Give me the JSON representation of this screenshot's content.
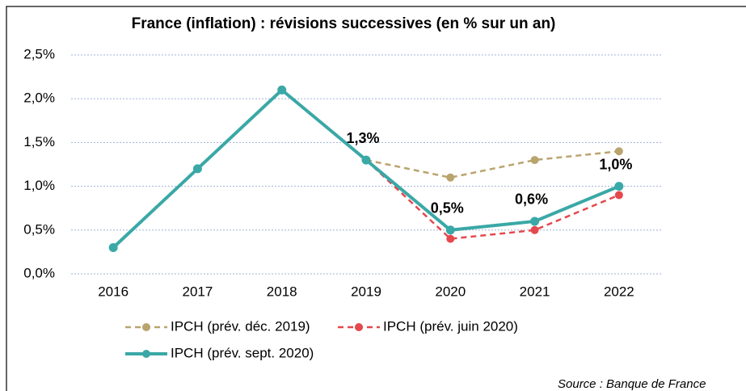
{
  "chart_data": {
    "type": "line",
    "title": "France (inflation) : révisions successives (en % sur un an)",
    "source": "Source : Banque de France",
    "categories": [
      "2016",
      "2017",
      "2018",
      "2019",
      "2020",
      "2021",
      "2022"
    ],
    "series": [
      {
        "name": "IPCH (prév. déc. 2019)",
        "color": "#b9a46e",
        "dashed": true,
        "values": [
          null,
          null,
          null,
          1.3,
          1.1,
          1.3,
          1.4
        ]
      },
      {
        "name": "IPCH (prév. juin 2020)",
        "color": "#e5484d",
        "dashed": true,
        "values": [
          null,
          null,
          null,
          1.3,
          0.4,
          0.5,
          0.9
        ]
      },
      {
        "name": "IPCH (prév. sept. 2020)",
        "color": "#3aa8a6",
        "dashed": false,
        "values": [
          0.3,
          1.2,
          2.1,
          1.3,
          0.5,
          0.6,
          1.0
        ],
        "value_labels": [
          null,
          null,
          null,
          "1,3%",
          "0,5%",
          "0,6%",
          "1,0%"
        ],
        "value_label_color": "#3aa3b2"
      }
    ],
    "ylim": [
      0,
      2.5
    ],
    "yticks": [
      {
        "value": 0,
        "label": "0,0%"
      },
      {
        "value": 0.5,
        "label": "0,5%"
      },
      {
        "value": 1,
        "label": "1,0%"
      },
      {
        "value": 1.5,
        "label": "1,5%"
      },
      {
        "value": 2,
        "label": "2,0%"
      },
      {
        "value": 2.5,
        "label": "2,5%"
      }
    ],
    "grid": true
  }
}
